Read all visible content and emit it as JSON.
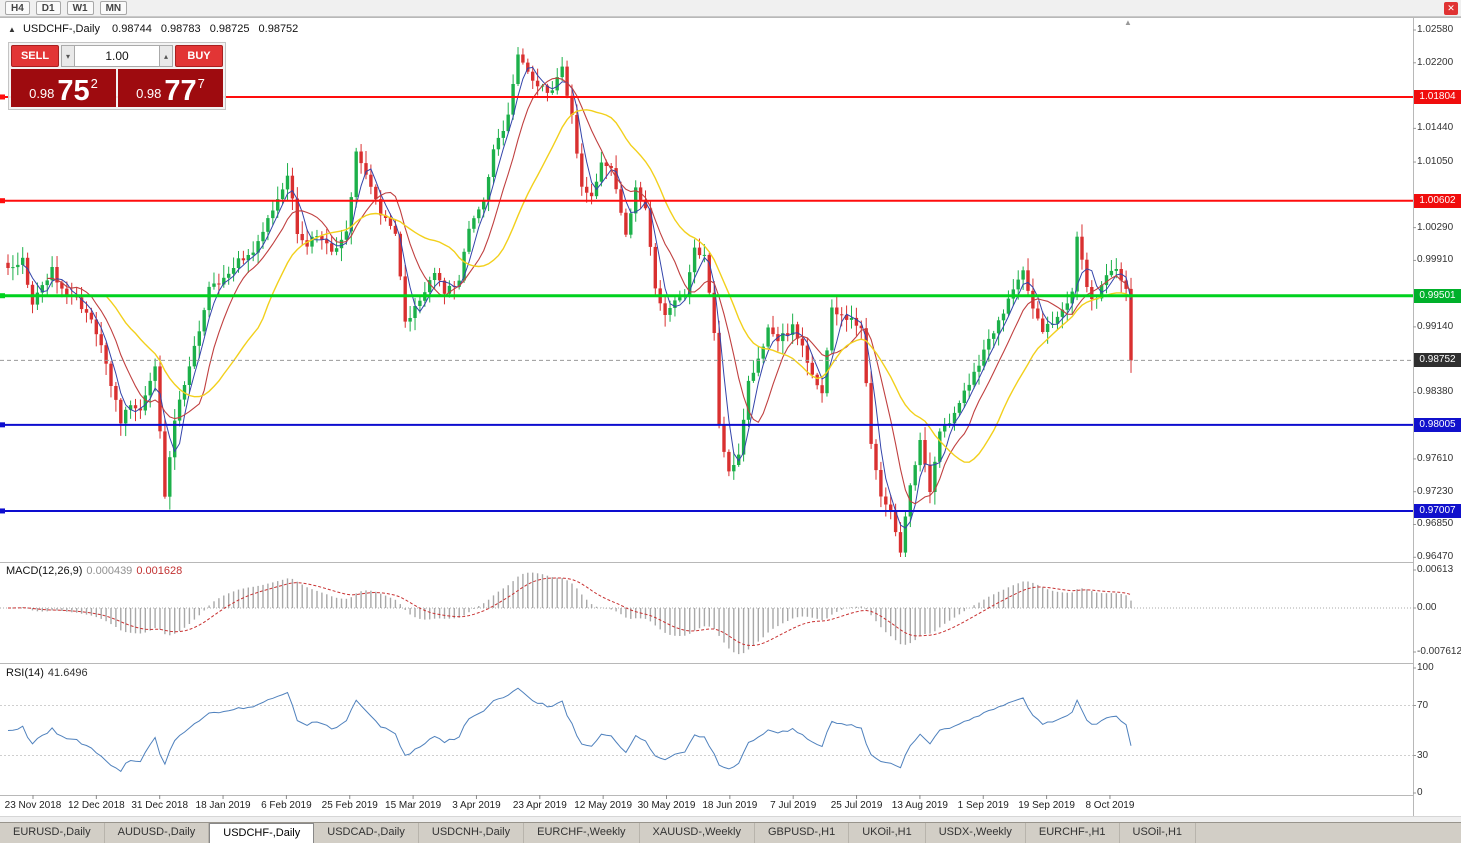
{
  "window": {
    "timeframe_buttons": [
      "H4",
      "D1",
      "W1",
      "MN"
    ],
    "close_icon": "✕",
    "scroll_marker_icon": "▲"
  },
  "symbol_header": {
    "collapse_icon": "▲",
    "title": "USDCHF-,Daily",
    "open": "0.98744",
    "high": "0.98783",
    "low": "0.98725",
    "close": "0.98752"
  },
  "trade_panel": {
    "sell_label": "SELL",
    "buy_label": "BUY",
    "volume": "1.00",
    "spin_up_icon": "▴",
    "spin_down_icon": "▾",
    "sell_price": {
      "small": "0.98",
      "big": "75",
      "sup": "2"
    },
    "buy_price": {
      "small": "0.98",
      "big": "77",
      "sup": "7"
    },
    "button_color": "#e23535",
    "price_bg_color": "#9e0b0f"
  },
  "price_axis": {
    "labels": [
      "1.02580",
      "1.02200",
      "1.01440",
      "1.01050",
      "1.00290",
      "0.99910",
      "0.99140",
      "0.98380",
      "0.97610",
      "0.97230",
      "0.96850",
      "0.96470"
    ],
    "badges": [
      {
        "text": "1.01804",
        "price": 1.01804,
        "bg": "#f00d0d"
      },
      {
        "text": "1.00602",
        "price": 1.00602,
        "bg": "#f00d0d"
      },
      {
        "text": "0.99501",
        "price": 0.99501,
        "bg": "#00b02a"
      },
      {
        "text": "0.98752",
        "price": 0.98752,
        "bg": "#2f2f2f",
        "current": true
      },
      {
        "text": "0.98005",
        "price": 0.98005,
        "bg": "#1111cc"
      },
      {
        "text": "0.97007",
        "price": 0.97007,
        "bg": "#1111cc"
      }
    ]
  },
  "macd_panel": {
    "name": "MACD(12,26,9)",
    "value_main": "0.000439",
    "value_signal": "0.001628",
    "axis_labels": [
      {
        "text": "0.00613",
        "y": 570
      },
      {
        "text": "0.00",
        "y": 608
      },
      {
        "text": "-0.007612",
        "y": 652
      }
    ]
  },
  "rsi_panel": {
    "name": "RSI(14)",
    "value": "41.6496",
    "axis_labels": [
      {
        "text": "100",
        "rsi": 100
      },
      {
        "text": "70",
        "rsi": 70
      },
      {
        "text": "30",
        "rsi": 30
      },
      {
        "text": "0",
        "rsi": 0
      }
    ]
  },
  "tabs": {
    "active_index": 2,
    "items": [
      "EURUSD-,Daily",
      "AUDUSD-,Daily",
      "USDCHF-,Daily",
      "USDCAD-,Daily",
      "USDCNH-,Daily",
      "EURCHF-,Weekly",
      "XAUUSD-,Weekly",
      "GBPUSD-,H1",
      "UKOil-,H1",
      "USDX-,Weekly",
      "EURCHF-,H1",
      "USOil-,H1"
    ],
    "active_tab": "USDCHF-,Daily"
  },
  "chart_data": {
    "type": "candlestick",
    "symbol": "USDCHF",
    "timeframe": "Daily",
    "title": "USDCHF-,Daily",
    "y_range": [
      0.9647,
      1.0258
    ],
    "x_ticks": [
      "23 Nov 2018",
      "12 Dec 2018",
      "31 Dec 2018",
      "18 Jan 2019",
      "6 Feb 2019",
      "25 Feb 2019",
      "15 Mar 2019",
      "3 Apr 2019",
      "23 Apr 2019",
      "12 May 2019",
      "30 May 2019",
      "18 Jun 2019",
      "7 Jul 2019",
      "25 Jul 2019",
      "13 Aug 2019",
      "1 Sep 2019",
      "19 Sep 2019",
      "8 Oct 2019"
    ],
    "num_candles": 230,
    "last_close": 0.98752,
    "ohlc_current": {
      "open": 0.98744,
      "high": 0.98783,
      "low": 0.98725,
      "close": 0.98752
    },
    "price_anchors": [
      [
        0,
        0.9985
      ],
      [
        3,
        0.999
      ],
      [
        5,
        0.9944
      ],
      [
        9,
        0.9979
      ],
      [
        12,
        0.995
      ],
      [
        14,
        0.9944
      ],
      [
        17,
        0.992
      ],
      [
        19,
        0.9897
      ],
      [
        23,
        0.9803
      ],
      [
        25,
        0.9827
      ],
      [
        27,
        0.9815
      ],
      [
        30,
        0.987
      ],
      [
        32,
        0.9721
      ],
      [
        34,
        0.9803
      ],
      [
        36,
        0.985
      ],
      [
        39,
        0.9909
      ],
      [
        41,
        0.9956
      ],
      [
        44,
        0.9968
      ],
      [
        47,
        0.9991
      ],
      [
        50,
        1.0003
      ],
      [
        52,
        1.0026
      ],
      [
        55,
        1.006
      ],
      [
        57,
        1.0091
      ],
      [
        59,
        1.0026
      ],
      [
        61,
        1.0009
      ],
      [
        63,
        1.0021
      ],
      [
        66,
        1.0003
      ],
      [
        69,
        1.0021
      ],
      [
        71,
        1.0115
      ],
      [
        74,
        1.0079
      ],
      [
        76,
        1.0044
      ],
      [
        79,
        1.0026
      ],
      [
        81,
        0.9921
      ],
      [
        84,
        0.9944
      ],
      [
        87,
        0.9979
      ],
      [
        89,
        0.9956
      ],
      [
        92,
        0.9968
      ],
      [
        94,
        1.0026
      ],
      [
        97,
        1.0062
      ],
      [
        99,
        1.0121
      ],
      [
        102,
        1.0156
      ],
      [
        104,
        1.0226
      ],
      [
        107,
        1.0197
      ],
      [
        109,
        1.0191
      ],
      [
        111,
        1.0185
      ],
      [
        113,
        1.0215
      ],
      [
        115,
        1.0156
      ],
      [
        117,
        1.0079
      ],
      [
        119,
        1.0062
      ],
      [
        121,
        1.0103
      ],
      [
        123,
        1.0097
      ],
      [
        126,
        1.0021
      ],
      [
        128,
        1.0079
      ],
      [
        130,
        1.005
      ],
      [
        132,
        0.9956
      ],
      [
        134,
        0.9932
      ],
      [
        136,
        0.9944
      ],
      [
        138,
        0.995
      ],
      [
        140,
        1.0003
      ],
      [
        142,
        0.9997
      ],
      [
        144,
        0.9909
      ],
      [
        145,
        0.9803
      ],
      [
        147,
        0.9744
      ],
      [
        149,
        0.9768
      ],
      [
        151,
        0.985
      ],
      [
        153,
        0.9874
      ],
      [
        155,
        0.9909
      ],
      [
        157,
        0.9897
      ],
      [
        160,
        0.9915
      ],
      [
        162,
        0.9891
      ],
      [
        164,
        0.9862
      ],
      [
        166,
        0.9838
      ],
      [
        168,
        0.9932
      ],
      [
        170,
        0.9926
      ],
      [
        172,
        0.9921
      ],
      [
        174,
        0.9909
      ],
      [
        176,
        0.978
      ],
      [
        178,
        0.9721
      ],
      [
        180,
        0.9697
      ],
      [
        182,
        0.9656
      ],
      [
        184,
        0.9733
      ],
      [
        186,
        0.978
      ],
      [
        188,
        0.9721
      ],
      [
        190,
        0.9791
      ],
      [
        192,
        0.9803
      ],
      [
        194,
        0.9827
      ],
      [
        196,
        0.985
      ],
      [
        199,
        0.9885
      ],
      [
        202,
        0.9921
      ],
      [
        204,
        0.9944
      ],
      [
        207,
        0.9979
      ],
      [
        209,
        0.9932
      ],
      [
        211,
        0.9909
      ],
      [
        213,
        0.9921
      ],
      [
        215,
        0.9932
      ],
      [
        217,
        0.9956
      ],
      [
        218,
        1.0021
      ],
      [
        220,
        0.9956
      ],
      [
        222,
        0.9944
      ],
      [
        224,
        0.9973
      ],
      [
        226,
        0.9985
      ],
      [
        228,
        0.9956
      ],
      [
        229,
        0.98752
      ]
    ],
    "colors": {
      "bull": "#1cb04a",
      "bear": "#d93030"
    },
    "moving_averages": [
      {
        "period": 4,
        "color": "#3344aa",
        "width": 1
      },
      {
        "period": 9,
        "color": "#c04040",
        "width": 1.1
      },
      {
        "period": 21,
        "color": "#f2d01c",
        "width": 1.4
      }
    ],
    "hlines": [
      {
        "price": 1.01804,
        "color": "#ff0d0d",
        "width": 2
      },
      {
        "price": 1.00602,
        "color": "#ff0d0d",
        "width": 2
      },
      {
        "price": 0.99501,
        "color": "#00d21e",
        "width": 3
      },
      {
        "price": 0.98752,
        "color": "#9a9a9a",
        "width": 1,
        "dash": "4 3",
        "current": true
      },
      {
        "price": 0.98005,
        "color": "#0d0dcf",
        "width": 2
      },
      {
        "price": 0.97007,
        "color": "#0d0dcf",
        "width": 2
      }
    ],
    "indicators": {
      "macd": {
        "params": [
          12,
          26,
          9
        ],
        "value_main": 0.000439,
        "value_signal": 0.001628,
        "axis_max": 0.00613,
        "axis_min": -0.007612
      },
      "rsi": {
        "period": 14,
        "current": 41.6496,
        "levels": [
          70,
          30
        ]
      }
    }
  }
}
